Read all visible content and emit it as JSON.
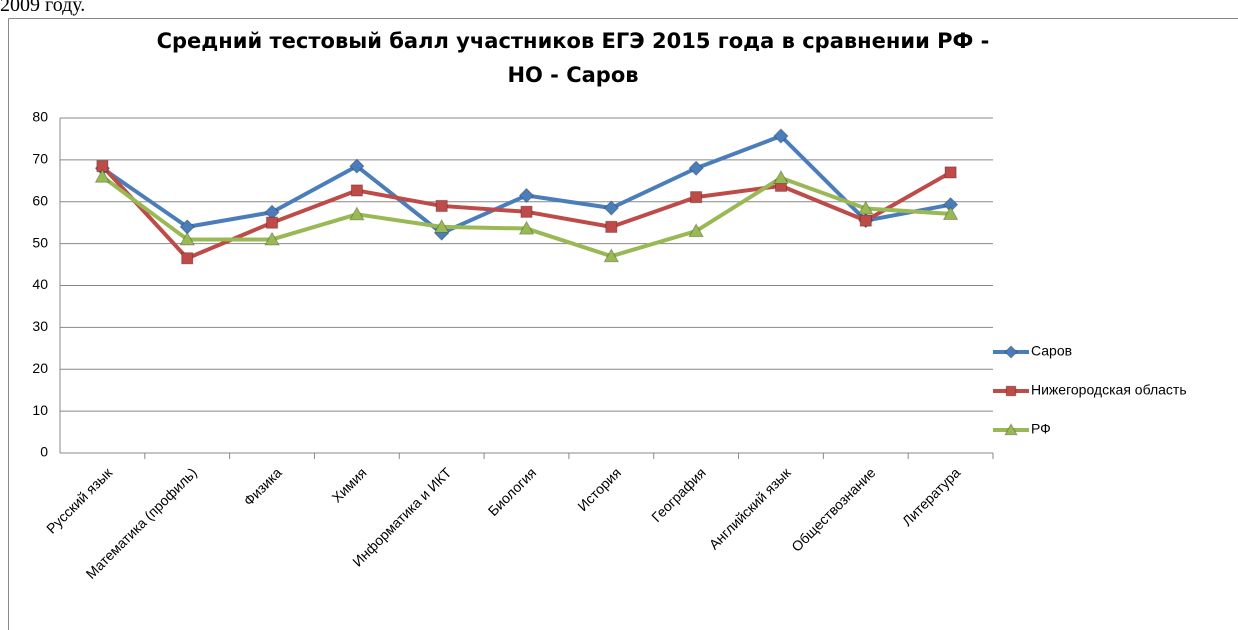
{
  "page_text": "2009 году.",
  "chart_data": {
    "type": "line",
    "title": "Средний тестовый балл участников ЕГЭ 2015 года в сравнении РФ - НО - Саров",
    "categories": [
      "Русский язык",
      "Математика (профиль)",
      "Физика",
      "Химия",
      "Информатика и ИКТ",
      "Биология",
      "История",
      "География",
      "Английский язык",
      "Обществознание",
      "Литература"
    ],
    "series": [
      {
        "name": "Саров",
        "color": "#4a7ebb",
        "marker": "diamond",
        "values": [
          68,
          54,
          57.5,
          68.5,
          52.5,
          61.5,
          58.5,
          68,
          75.7,
          55.5,
          59.3
        ]
      },
      {
        "name": "Нижегородская область",
        "color": "#be4b48",
        "marker": "square",
        "values": [
          68.5,
          46.5,
          55,
          62.7,
          59,
          57.6,
          54,
          61.1,
          63.8,
          55.5,
          67
        ]
      },
      {
        "name": "РФ",
        "color": "#98b954",
        "marker": "triangle",
        "values": [
          66,
          51,
          51,
          57,
          54,
          53.6,
          47,
          53,
          65.7,
          58.4,
          57.1
        ]
      }
    ],
    "ylim": [
      0,
      80
    ],
    "yticks": [
      0,
      10,
      20,
      30,
      40,
      50,
      60,
      70,
      80
    ],
    "grid": true,
    "legend": "right"
  }
}
